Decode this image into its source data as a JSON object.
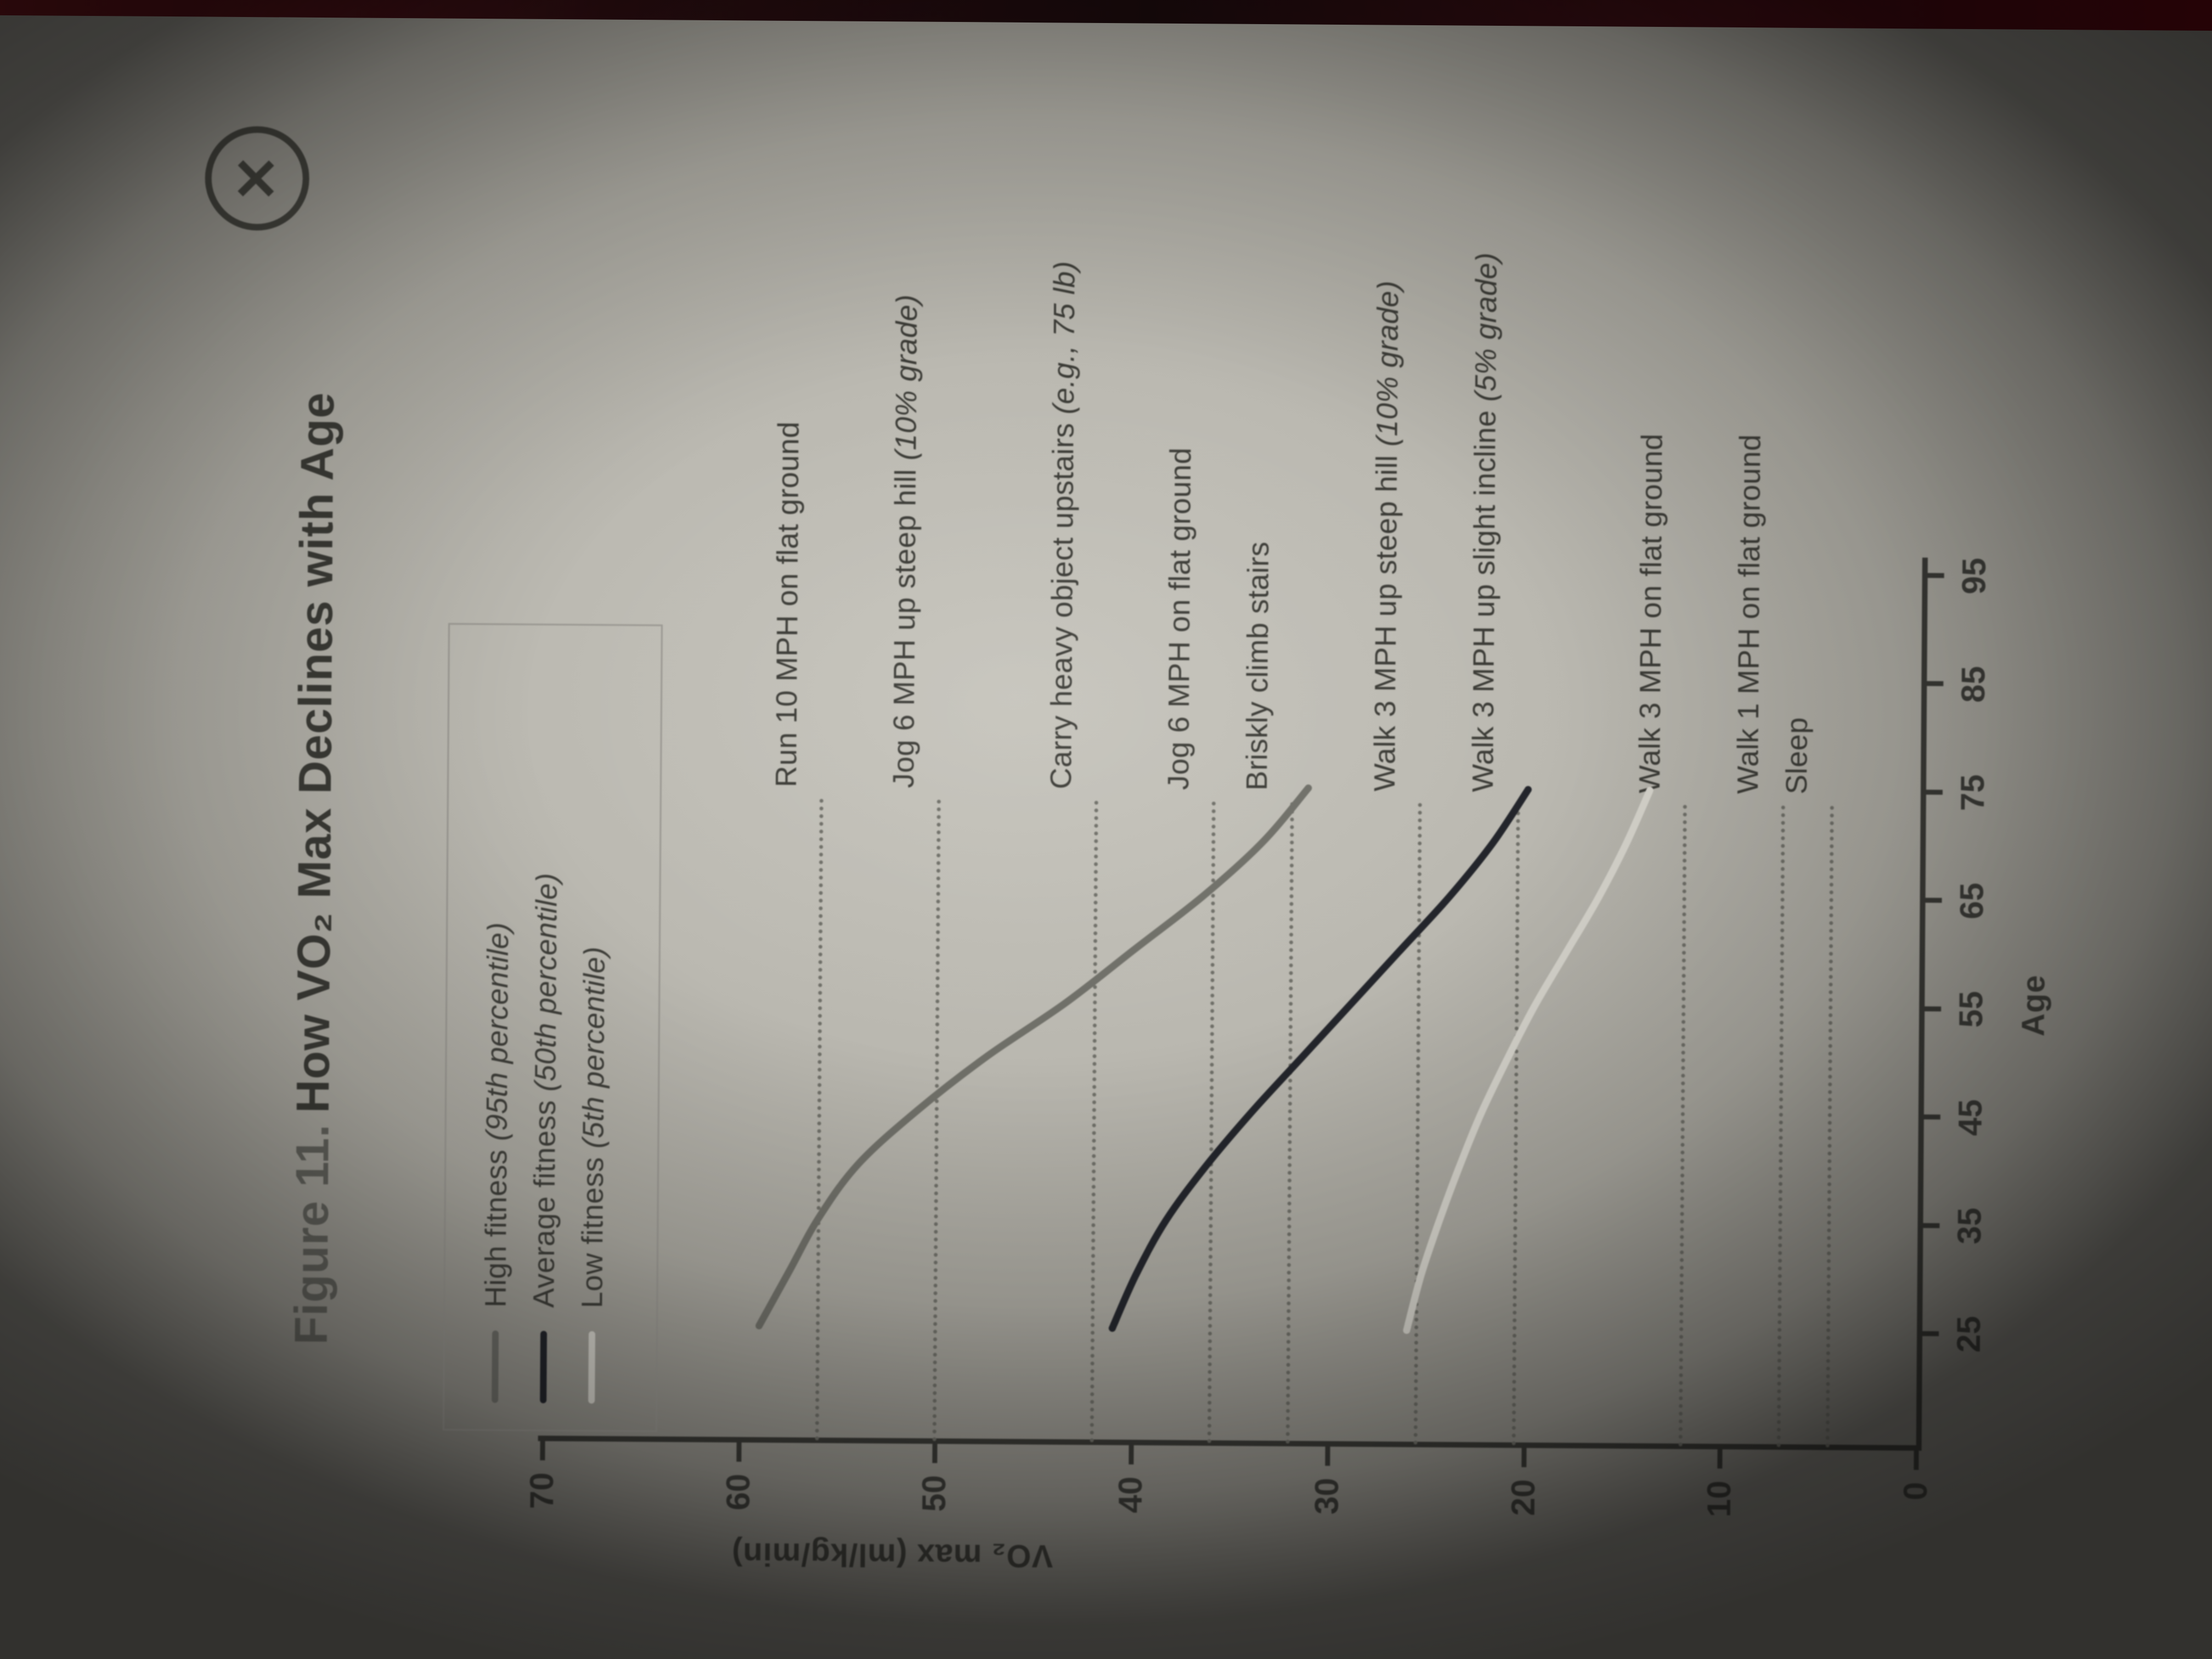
{
  "window": {
    "close_icon": "✕"
  },
  "figure": {
    "label": "Figure 11.",
    "title": "How VO₂ Max Declines with Age"
  },
  "legend": {
    "items": [
      {
        "text": "High fitness",
        "note": "(95th percentile)",
        "color": "#70706a"
      },
      {
        "text": "Average fitness",
        "note": "(50th percentile)",
        "color": "#23252b"
      },
      {
        "text": "Low fitness",
        "note": "(5th percentile)",
        "color": "#d6d4cc"
      }
    ]
  },
  "chart_data": {
    "type": "line",
    "title": "Figure 11. How VO₂ Max Declines with Age",
    "xlabel": "Age",
    "ylabel": "VO₂ max (ml/kg/min)",
    "xlim": [
      20,
      100
    ],
    "ylim": [
      0,
      70
    ],
    "grid": false,
    "legend_position": "top-left box",
    "x_ticks": [
      25,
      35,
      45,
      55,
      65,
      75,
      85,
      95
    ],
    "y_ticks": [
      0,
      10,
      20,
      30,
      40,
      50,
      60,
      70
    ],
    "x": [
      25,
      30,
      35,
      40,
      45,
      50,
      55,
      60,
      65,
      70,
      75
    ],
    "series": [
      {
        "name": "High fitness (95th percentile)",
        "color": "#6f6f68",
        "values": [
          59,
          57.5,
          56,
          54,
          51,
          47.5,
          43.5,
          40,
          36.5,
          33.5,
          31.2
        ]
      },
      {
        "name": "Average fitness (50th percentile)",
        "color": "#23252b",
        "values": [
          41,
          39.8,
          38.3,
          36.3,
          34,
          31.5,
          29,
          26.5,
          24,
          21.8,
          20
        ]
      },
      {
        "name": "Low fitness (5th percentile)",
        "color": "#d6d4cc",
        "values": [
          26,
          25.3,
          24.4,
          23.4,
          22.3,
          21,
          19.6,
          18,
          16.4,
          15,
          13.8
        ]
      }
    ],
    "reference_lines": [
      {
        "text": "Run 10 MPH on flat ground",
        "note": "",
        "vo2": 56
      },
      {
        "text": "Jog 6 MPH up steep hill",
        "note": "(10% grade)",
        "vo2": 50
      },
      {
        "text": "Carry heavy object upstairs",
        "note": "(e.g., 75 lb)",
        "vo2": 42
      },
      {
        "text": "Jog 6 MPH on flat ground",
        "note": "",
        "vo2": 36
      },
      {
        "text": "Briskly climb stairs",
        "note": "",
        "vo2": 32
      },
      {
        "text": "Walk 3 MPH up steep hill",
        "note": "(10% grade)",
        "vo2": 25.5
      },
      {
        "text": "Walk 3 MPH up slight incline",
        "note": "(5% grade)",
        "vo2": 20.5
      },
      {
        "text": "Walk 3 MPH on flat ground",
        "note": "",
        "vo2": 12
      },
      {
        "text": "Walk 1 MPH on flat ground",
        "note": "",
        "vo2": 7
      },
      {
        "text": "Sleep",
        "note": "",
        "vo2": 4.5
      }
    ]
  }
}
